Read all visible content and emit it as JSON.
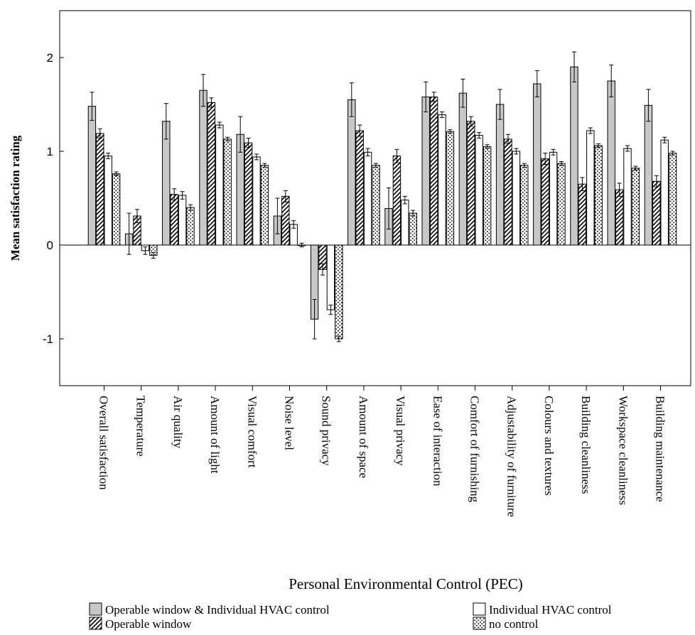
{
  "chart_data": {
    "type": "bar",
    "title": "",
    "xlabel": "Personal Environmental Control (PEC)",
    "ylabel": "Mean satisfaction rating",
    "ylim": [
      -1.5,
      2.5
    ],
    "yticks": [
      -1,
      0,
      1,
      2
    ],
    "ytick_labels": [
      "-1",
      "0",
      "1",
      "2"
    ],
    "grid": false,
    "legend_position": "bottom",
    "categories": [
      "Overall satisfaction",
      "Temperature",
      "Air quality",
      "Amount of light",
      "Visual comfort",
      "Noise level",
      "Sound privacy",
      "Amount of space",
      "Visual privacy",
      "Ease of interaction",
      "Comfort of furnishing",
      "Adjustability of furniture",
      "Colours and textures",
      "Building cleanliness",
      "Workspace cleanliness",
      "Building maintenance"
    ],
    "series": [
      {
        "name": "Operable window & Individual HVAC control",
        "pattern": "solid-gray",
        "color": "#c8c8c8",
        "values": [
          1.48,
          0.12,
          1.32,
          1.65,
          1.18,
          0.31,
          -0.79,
          1.55,
          0.39,
          1.58,
          1.62,
          1.5,
          1.72,
          1.9,
          1.75,
          1.49
        ],
        "err": [
          0.15,
          0.22,
          0.19,
          0.17,
          0.19,
          0.19,
          0.21,
          0.18,
          0.22,
          0.16,
          0.15,
          0.16,
          0.14,
          0.16,
          0.17,
          0.17
        ]
      },
      {
        "name": "Operable window",
        "pattern": "diagonal-hatch",
        "color": "#000000",
        "values": [
          1.19,
          0.31,
          0.54,
          1.52,
          1.09,
          0.52,
          -0.26,
          1.22,
          0.95,
          1.58,
          1.32,
          1.13,
          0.92,
          0.65,
          0.59,
          0.68
        ],
        "err": [
          0.05,
          0.07,
          0.06,
          0.05,
          0.05,
          0.06,
          0.06,
          0.06,
          0.07,
          0.05,
          0.05,
          0.05,
          0.06,
          0.07,
          0.07,
          0.06
        ]
      },
      {
        "name": "Individual HVAC control",
        "pattern": "white",
        "color": "#ffffff",
        "values": [
          0.95,
          -0.06,
          0.53,
          1.28,
          0.94,
          0.22,
          -0.69,
          0.99,
          0.48,
          1.39,
          1.17,
          1.0,
          0.99,
          1.22,
          1.03,
          1.12
        ],
        "err": [
          0.03,
          0.04,
          0.04,
          0.03,
          0.03,
          0.04,
          0.05,
          0.04,
          0.04,
          0.03,
          0.03,
          0.03,
          0.03,
          0.03,
          0.03,
          0.03
        ]
      },
      {
        "name": "no control",
        "pattern": "dotted",
        "color": "#ffffff",
        "values": [
          0.76,
          -0.11,
          0.4,
          1.13,
          0.85,
          0.0,
          -1.0,
          0.85,
          0.34,
          1.21,
          1.05,
          0.85,
          0.87,
          1.06,
          0.82,
          0.98
        ],
        "err": [
          0.02,
          0.03,
          0.03,
          0.02,
          0.02,
          0.02,
          0.03,
          0.02,
          0.03,
          0.02,
          0.02,
          0.02,
          0.02,
          0.02,
          0.02,
          0.02
        ]
      }
    ]
  }
}
